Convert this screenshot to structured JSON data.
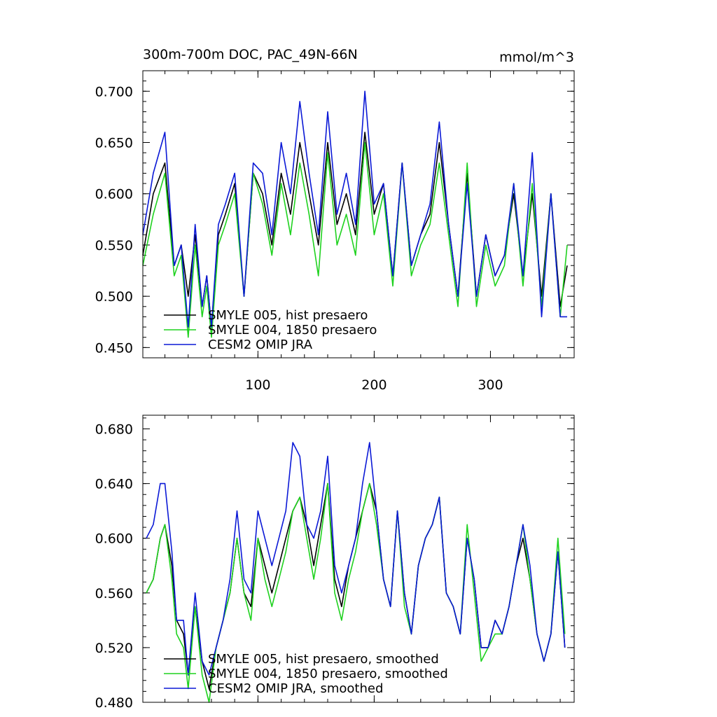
{
  "chart_data": [
    {
      "type": "line",
      "title": "300m-700m DOC, PAC_49N-66N",
      "units": "mmol/m^3",
      "xlim": [
        1,
        372
      ],
      "ylim": [
        0.44,
        0.72
      ],
      "xticks": [
        100,
        200,
        300
      ],
      "xtick_labels": [
        "100",
        "200",
        "300"
      ],
      "yticks": [
        0.45,
        0.5,
        0.55,
        0.6,
        0.65,
        0.7
      ],
      "ytick_labels": [
        "0.450",
        "0.500",
        "0.550",
        "0.600",
        "0.650",
        "0.700"
      ],
      "legend": [
        "SMYLE 005, hist presaero",
        "SMYLE 004, 1850 presaero",
        "CESM2 OMIP JRA"
      ],
      "x": [
        1,
        10,
        20,
        28,
        34,
        40,
        46,
        52,
        56,
        60,
        66,
        72,
        80,
        88,
        96,
        104,
        112,
        120,
        128,
        136,
        144,
        152,
        160,
        168,
        176,
        184,
        192,
        200,
        208,
        216,
        224,
        232,
        240,
        248,
        256,
        264,
        272,
        280,
        288,
        296,
        304,
        312,
        320,
        328,
        336,
        344,
        352,
        360,
        366
      ],
      "series": [
        {
          "name": "SMYLE 005, hist presaero",
          "color": "#000000",
          "values": [
            0.54,
            0.6,
            0.63,
            0.53,
            0.55,
            0.5,
            0.56,
            0.49,
            0.52,
            0.47,
            0.56,
            0.58,
            0.61,
            0.5,
            0.62,
            0.6,
            0.55,
            0.62,
            0.58,
            0.65,
            0.6,
            0.55,
            0.65,
            0.57,
            0.6,
            0.56,
            0.66,
            0.58,
            0.61,
            0.52,
            0.63,
            0.53,
            0.56,
            0.58,
            0.65,
            0.57,
            0.5,
            0.62,
            0.5,
            0.56,
            0.52,
            0.54,
            0.6,
            0.52,
            0.6,
            0.5,
            0.6,
            0.49,
            0.53
          ]
        },
        {
          "name": "SMYLE 004, 1850 presaero",
          "color": "#1fd21f",
          "values": [
            0.53,
            0.58,
            0.62,
            0.52,
            0.54,
            0.46,
            0.55,
            0.48,
            0.51,
            0.46,
            0.55,
            0.57,
            0.6,
            0.5,
            0.62,
            0.59,
            0.54,
            0.61,
            0.56,
            0.63,
            0.58,
            0.52,
            0.64,
            0.55,
            0.58,
            0.54,
            0.65,
            0.56,
            0.6,
            0.51,
            0.63,
            0.52,
            0.55,
            0.57,
            0.63,
            0.56,
            0.49,
            0.63,
            0.49,
            0.55,
            0.51,
            0.53,
            0.61,
            0.51,
            0.61,
            0.49,
            0.6,
            0.48,
            0.55
          ]
        },
        {
          "name": "CESM2 OMIP JRA",
          "color": "#0b19d6",
          "values": [
            0.56,
            0.62,
            0.66,
            0.53,
            0.55,
            0.47,
            0.57,
            0.49,
            0.52,
            0.47,
            0.57,
            0.59,
            0.62,
            0.5,
            0.63,
            0.62,
            0.56,
            0.65,
            0.6,
            0.69,
            0.62,
            0.56,
            0.68,
            0.58,
            0.62,
            0.57,
            0.7,
            0.59,
            0.61,
            0.52,
            0.63,
            0.53,
            0.56,
            0.59,
            0.67,
            0.57,
            0.5,
            0.61,
            0.5,
            0.56,
            0.52,
            0.54,
            0.61,
            0.52,
            0.64,
            0.48,
            0.6,
            0.48,
            0.48
          ]
        }
      ]
    },
    {
      "type": "line",
      "title": "",
      "xlim": [
        1,
        372
      ],
      "ylim": [
        0.48,
        0.69
      ],
      "xticks": [
        100,
        200,
        300
      ],
      "yticks": [
        0.48,
        0.52,
        0.56,
        0.6,
        0.64,
        0.68
      ],
      "ytick_labels": [
        "0.480",
        "0.520",
        "0.560",
        "0.600",
        "0.640",
        "0.680"
      ],
      "legend": [
        "SMYLE 005, hist presaero, smoothed",
        "SMYLE 004, 1850 presaero, smoothed",
        "CESM2 OMIP JRA, smoothed"
      ],
      "x": [
        4,
        10,
        16,
        20,
        26,
        30,
        36,
        40,
        46,
        52,
        58,
        64,
        70,
        76,
        82,
        88,
        94,
        100,
        106,
        112,
        118,
        124,
        130,
        136,
        142,
        148,
        154,
        160,
        166,
        172,
        178,
        184,
        190,
        196,
        202,
        208,
        214,
        220,
        226,
        232,
        238,
        244,
        250,
        256,
        262,
        268,
        274,
        280,
        286,
        292,
        298,
        304,
        310,
        316,
        322,
        328,
        334,
        340,
        346,
        352,
        358,
        364
      ],
      "series": [
        {
          "name": "SMYLE 005, hist presaero, smoothed",
          "color": "#000000",
          "values": [
            0.56,
            0.57,
            0.6,
            0.61,
            0.58,
            0.54,
            0.53,
            0.5,
            0.55,
            0.51,
            0.49,
            0.52,
            0.54,
            0.56,
            0.6,
            0.56,
            0.55,
            0.6,
            0.58,
            0.56,
            0.58,
            0.6,
            0.62,
            0.63,
            0.61,
            0.58,
            0.61,
            0.64,
            0.57,
            0.55,
            0.58,
            0.6,
            0.62,
            0.64,
            0.62,
            0.57,
            0.55,
            0.62,
            0.56,
            0.53,
            0.58,
            0.6,
            0.61,
            0.63,
            0.56,
            0.55,
            0.53,
            0.6,
            0.57,
            0.52,
            0.52,
            0.54,
            0.53,
            0.55,
            0.58,
            0.6,
            0.57,
            0.53,
            0.51,
            0.53,
            0.59,
            0.52
          ]
        },
        {
          "name": "SMYLE 004, 1850 presaero, smoothed",
          "color": "#1fd21f",
          "values": [
            0.56,
            0.57,
            0.6,
            0.61,
            0.57,
            0.53,
            0.52,
            0.49,
            0.55,
            0.5,
            0.48,
            0.52,
            0.54,
            0.56,
            0.6,
            0.56,
            0.54,
            0.6,
            0.57,
            0.55,
            0.57,
            0.59,
            0.62,
            0.63,
            0.6,
            0.57,
            0.6,
            0.64,
            0.56,
            0.54,
            0.57,
            0.59,
            0.62,
            0.64,
            0.61,
            0.57,
            0.55,
            0.62,
            0.55,
            0.53,
            0.58,
            0.6,
            0.61,
            0.63,
            0.56,
            0.55,
            0.53,
            0.61,
            0.56,
            0.51,
            0.52,
            0.53,
            0.53,
            0.55,
            0.58,
            0.61,
            0.57,
            0.53,
            0.51,
            0.53,
            0.6,
            0.53
          ]
        },
        {
          "name": "CESM2 OMIP JRA, smoothed",
          "color": "#0b19d6",
          "values": [
            0.6,
            0.61,
            0.64,
            0.64,
            0.59,
            0.54,
            0.54,
            0.5,
            0.56,
            0.51,
            0.5,
            0.52,
            0.54,
            0.57,
            0.62,
            0.57,
            0.56,
            0.62,
            0.6,
            0.58,
            0.6,
            0.62,
            0.67,
            0.66,
            0.61,
            0.6,
            0.62,
            0.66,
            0.58,
            0.56,
            0.58,
            0.6,
            0.64,
            0.67,
            0.62,
            0.57,
            0.55,
            0.62,
            0.56,
            0.53,
            0.58,
            0.6,
            0.61,
            0.63,
            0.56,
            0.55,
            0.53,
            0.6,
            0.57,
            0.52,
            0.52,
            0.54,
            0.53,
            0.55,
            0.58,
            0.61,
            0.58,
            0.53,
            0.51,
            0.53,
            0.59,
            0.52
          ]
        }
      ]
    }
  ]
}
